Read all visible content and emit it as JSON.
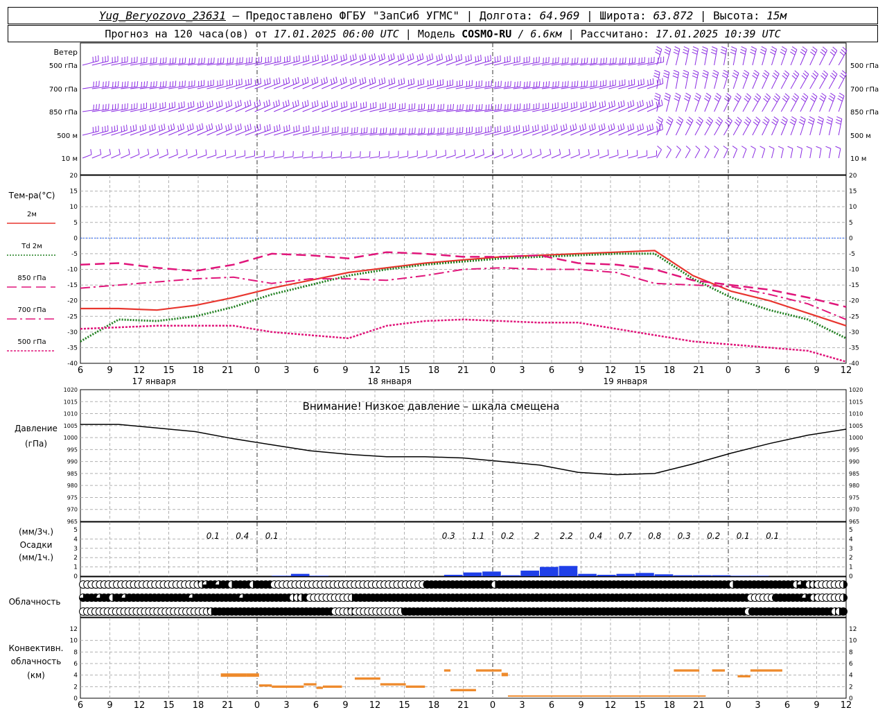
{
  "header": {
    "station": "Yug_Beryozovo_23631",
    "provided_by": "– Предоставлено ФГБУ \"ЗапСиб УГМС\"",
    "lon_label": "Долгота:",
    "lon": "64.969",
    "lat_label": "Широта:",
    "lat": "63.872",
    "alt_label": "Высота:",
    "alt": "15м",
    "forecast_label": "Прогноз на 120 часа(ов) от",
    "forecast_from": "17.01.2025 06:00 UTC",
    "model_label": "Модель",
    "model": "COSMO-RU",
    "model_res": "/ 6.6км",
    "calc_label": "Рассчитано:",
    "calc_time": "17.01.2025 10:39 UTC"
  },
  "colors": {
    "wind": "#8a2be2",
    "t2m": "#e8352e",
    "td2m": "#1e7f1e",
    "t850": "#e0157a",
    "t700": "#e0157a",
    "t500": "#e0157a",
    "zero_line": "#2060ff",
    "pressure": "#000000",
    "precip": "#1f3fe8",
    "convective": "#ee8a2c",
    "grid": "#b0b0b0"
  },
  "time_axis": {
    "hours": [
      "6",
      "9",
      "12",
      "15",
      "18",
      "21",
      "0",
      "3",
      "6",
      "9",
      "12",
      "15",
      "18",
      "21",
      "0",
      "3",
      "6",
      "9",
      "12",
      "15",
      "18",
      "21",
      "0",
      "3",
      "6",
      "9",
      "12"
    ],
    "dates": [
      {
        "label": "17 января",
        "at_index": 2.5
      },
      {
        "label": "18 января",
        "at_index": 10.5
      },
      {
        "label": "19 января",
        "at_index": 18.5
      }
    ]
  },
  "wind_panel": {
    "title": "Ветер",
    "levels": [
      "500 гПа",
      "700 гПа",
      "850 гПа",
      "500 м",
      "10  м"
    ]
  },
  "temp_panel": {
    "title": "Тем-ра(°C)",
    "legend": [
      {
        "label": "2м",
        "style": "solid"
      },
      {
        "label_it": "Td",
        "label": "2м",
        "style": "dotted"
      },
      {
        "label": "850 гПа",
        "style": "dash"
      },
      {
        "label": "700 гПа",
        "style": "dashdot"
      },
      {
        "label": "500 гПа",
        "style": "dot"
      }
    ],
    "ticks": [
      "20",
      "15",
      "10",
      "5",
      "0",
      "-5",
      "-10",
      "-15",
      "-20",
      "-25",
      "-30",
      "-35",
      "-40"
    ]
  },
  "pressure_panel": {
    "label1": "Давление",
    "label2": "(гПа)",
    "warning": "Внимание! Низкое давление – шкала смещена",
    "ticks": [
      "1020",
      "1015",
      "1010",
      "1005",
      "1000",
      "995",
      "990",
      "985",
      "980",
      "975",
      "970",
      "965"
    ]
  },
  "precip_panel": {
    "label1": "(мм/3ч.)",
    "label2": "Осадки",
    "label3": "(мм/1ч.)",
    "ticks": [
      "5",
      "4",
      "3",
      "2",
      "1",
      "0"
    ],
    "totals": [
      {
        "value": "0.1",
        "at_index": 4.5
      },
      {
        "value": "0.4",
        "at_index": 5.5
      },
      {
        "value": "0.1",
        "at_index": 6.5
      },
      {
        "value": "0.3",
        "at_index": 12.5
      },
      {
        "value": "1.1",
        "at_index": 13.5
      },
      {
        "value": "0.2",
        "at_index": 14.5
      },
      {
        "value": "2",
        "at_index": 15.5
      },
      {
        "value": "2.2",
        "at_index": 16.5
      },
      {
        "value": "0.4",
        "at_index": 17.5
      },
      {
        "value": "0.7",
        "at_index": 18.5
      },
      {
        "value": "0.8",
        "at_index": 19.5
      },
      {
        "value": "0.3",
        "at_index": 20.5
      },
      {
        "value": "0.2",
        "at_index": 21.5
      },
      {
        "value": "0.1",
        "at_index": 22.5
      },
      {
        "value": "0.1",
        "at_index": 23.5
      }
    ]
  },
  "cloud_panel": {
    "label": "Облачность"
  },
  "conv_panel": {
    "label1": "Конвективн.",
    "label2": "облачность",
    "label3": "(км)",
    "ticks": [
      "12",
      "10",
      "8",
      "6",
      "4",
      "2",
      "0"
    ]
  },
  "chart_data": [
    {
      "type": "line",
      "title": "Тем-ра(°C)",
      "x": [
        0,
        6,
        12,
        18,
        24,
        30,
        36,
        42,
        48,
        54,
        60,
        66,
        72,
        78,
        84,
        90,
        96,
        102,
        108,
        114,
        120
      ],
      "ylim": [
        -40,
        20
      ],
      "series": [
        {
          "name": "2м",
          "values": [
            -22.5,
            -22.5,
            -23,
            -21.5,
            -19,
            -16,
            -13.5,
            -11,
            -9.5,
            -8,
            -7,
            -6,
            -5.5,
            -5,
            -4.5,
            -4,
            -12,
            -17,
            -20,
            -24,
            -28
          ]
        },
        {
          "name": "Td 2м",
          "values": [
            -33,
            -26,
            -26.5,
            -25,
            -22,
            -18,
            -15,
            -12,
            -10,
            -8.5,
            -7.5,
            -6.5,
            -6,
            -5.5,
            -5,
            -5,
            -13,
            -19,
            -23,
            -26,
            -32
          ]
        },
        {
          "name": "850 гПа",
          "values": [
            -8.5,
            -8,
            -9.5,
            -10.5,
            -8.5,
            -5,
            -5.5,
            -6.5,
            -4.5,
            -5,
            -6,
            -6,
            -5.5,
            -8,
            -8.5,
            -10,
            -13.5,
            -15,
            -16.5,
            -19,
            -22
          ]
        },
        {
          "name": "700 гПа",
          "values": [
            -16,
            -15,
            -14,
            -13,
            -12.5,
            -14.5,
            -13,
            -13,
            -13.5,
            -12,
            -10,
            -9.5,
            -10,
            -10,
            -11,
            -14.5,
            -15,
            -15.5,
            -18,
            -21,
            -26
          ]
        },
        {
          "name": "500 гПа",
          "values": [
            -29,
            -28.5,
            -28,
            -28,
            -28,
            -30,
            -31,
            -32,
            -28,
            -26.5,
            -26,
            -26.5,
            -27,
            -27,
            -29,
            -31,
            -33,
            -34,
            -35,
            -36,
            -39.5
          ]
        }
      ]
    },
    {
      "type": "line",
      "title": "Давление (гПа)",
      "x": [
        0,
        6,
        12,
        18,
        24,
        30,
        36,
        42,
        48,
        54,
        60,
        66,
        72,
        78,
        84,
        90,
        96,
        102,
        108,
        114,
        120
      ],
      "ylim": [
        965,
        1020
      ],
      "series": [
        {
          "name": "Давление",
          "values": [
            1005.5,
            1005.5,
            1004,
            1002.5,
            999.5,
            997,
            994.5,
            993,
            992,
            992,
            991.5,
            990,
            988.5,
            985.5,
            984.5,
            985,
            989,
            993.5,
            997.5,
            1001,
            1003.5
          ]
        }
      ]
    },
    {
      "type": "bar",
      "title": "Осадки (мм/1ч.)",
      "x": [
        30,
        33,
        36,
        39,
        42,
        45,
        48,
        51,
        54,
        57,
        60,
        63,
        66,
        69,
        72,
        75,
        78,
        81,
        84,
        87,
        90,
        93,
        96,
        99,
        102,
        105,
        108,
        111
      ],
      "ylim": [
        0,
        5
      ],
      "values": [
        0.05,
        0.25,
        0.05,
        0,
        0,
        0,
        0,
        0,
        0,
        0.15,
        0.4,
        0.5,
        0.1,
        0.6,
        1.0,
        1.1,
        0.25,
        0.15,
        0.25,
        0.35,
        0.2,
        0.1,
        0.1,
        0.1,
        0.05,
        0.05,
        0,
        0
      ]
    },
    {
      "type": "bar",
      "title": "Конвективн. облачность (км)",
      "segments": [
        {
          "x0": 22,
          "x1": 26,
          "bottom": 3.7,
          "top": 4.3
        },
        {
          "x0": 26,
          "x1": 28,
          "bottom": 3.7,
          "top": 4.3
        },
        {
          "x0": 28,
          "x1": 30,
          "bottom": 2,
          "top": 2.4
        },
        {
          "x0": 30,
          "x1": 35,
          "bottom": 1.8,
          "top": 2.2
        },
        {
          "x0": 35,
          "x1": 37,
          "bottom": 2.2,
          "top": 2.6
        },
        {
          "x0": 37,
          "x1": 38,
          "bottom": 1.6,
          "top": 2
        },
        {
          "x0": 38,
          "x1": 41,
          "bottom": 1.8,
          "top": 2.2
        },
        {
          "x0": 43,
          "x1": 47,
          "bottom": 3.2,
          "top": 3.6
        },
        {
          "x0": 47,
          "x1": 51,
          "bottom": 2.2,
          "top": 2.6
        },
        {
          "x0": 51,
          "x1": 54,
          "bottom": 1.8,
          "top": 2.2
        },
        {
          "x0": 57,
          "x1": 58,
          "bottom": 4.6,
          "top": 5.0
        },
        {
          "x0": 58,
          "x1": 62,
          "bottom": 1.2,
          "top": 1.6
        },
        {
          "x0": 62,
          "x1": 66,
          "bottom": 4.6,
          "top": 5.0
        },
        {
          "x0": 66,
          "x1": 67,
          "bottom": 3.8,
          "top": 4.4
        },
        {
          "x0": 67,
          "x1": 98,
          "bottom": 0.3,
          "top": 0.5
        },
        {
          "x0": 93,
          "x1": 97,
          "bottom": 4.6,
          "top": 5.0
        },
        {
          "x0": 99,
          "x1": 101,
          "bottom": 4.6,
          "top": 5.0
        },
        {
          "x0": 103,
          "x1": 105,
          "bottom": 3.6,
          "top": 4.0
        },
        {
          "x0": 105,
          "x1": 110,
          "bottom": 4.6,
          "top": 5.0
        }
      ]
    },
    {
      "type": "table",
      "title": "Облачность",
      "rows": [
        {
          "name": "upper",
          "values": [
            0,
            0,
            0,
            0,
            0,
            0,
            0,
            0,
            0,
            0,
            0,
            0,
            0,
            0,
            0,
            0,
            0,
            0,
            0,
            0,
            0,
            0,
            0,
            0,
            0,
            0,
            0,
            0.25,
            0.5,
            0.75,
            1,
            1,
            0.75,
            1,
            1,
            0.5,
            1,
            1,
            1,
            1,
            0.5,
            1,
            1,
            1,
            1,
            0,
            0,
            0,
            0,
            0,
            0,
            0,
            0,
            0,
            0,
            0,
            0,
            0,
            0,
            0,
            0,
            0,
            0,
            0,
            0,
            0,
            0,
            0,
            0,
            0,
            0,
            0,
            0,
            0,
            0,
            0,
            0,
            0,
            0,
            0,
            0,
            1,
            1,
            1,
            1,
            1,
            1,
            1,
            1,
            1,
            1,
            1,
            1,
            1,
            1,
            1,
            1,
            0.5,
            1,
            1,
            1,
            1,
            1,
            1,
            1,
            1,
            1,
            1,
            1,
            1,
            1,
            1,
            1,
            1,
            1,
            1,
            1,
            1,
            1,
            1,
            1,
            1,
            1,
            1,
            1,
            1,
            1,
            1,
            1,
            1,
            1,
            1,
            1,
            1,
            1,
            1,
            1,
            1,
            1,
            1,
            1,
            1,
            1,
            1,
            1,
            1,
            1,
            1,
            1,
            1,
            1,
            1,
            1,
            0.5,
            1,
            1,
            1,
            1,
            1,
            1,
            1,
            1,
            1,
            1,
            1,
            1,
            1,
            1,
            0.5,
            0.75,
            1,
            0.5,
            0.5,
            0,
            0,
            0,
            0,
            0,
            0,
            0.5
          ]
        },
        {
          "name": "middle",
          "values": [
            0.75,
            1,
            1,
            1,
            0.75,
            1,
            1,
            0.5,
            1,
            1,
            0.75,
            1,
            1,
            1,
            1,
            1,
            1,
            1,
            1,
            1,
            1,
            1,
            1,
            1,
            1,
            1,
            0.75,
            1,
            1,
            1,
            1,
            1,
            1,
            1,
            1,
            1,
            1,
            1,
            0.75,
            1,
            1,
            1,
            1,
            1,
            1,
            1,
            1,
            1,
            1,
            1,
            0.5,
            0.5,
            0.5,
            1,
            0,
            0,
            0,
            0,
            0,
            0,
            0,
            0,
            0,
            0,
            0.5,
            1,
            1,
            1,
            1,
            1,
            1,
            1,
            1,
            1,
            1,
            1,
            1,
            1,
            1,
            1,
            1,
            1,
            1,
            1,
            1,
            1,
            1,
            1,
            1,
            1,
            1,
            1,
            1,
            1,
            1,
            1,
            1,
            1,
            1,
            1,
            1,
            1,
            1,
            1,
            1,
            1,
            1,
            1,
            1,
            1,
            1,
            1,
            1,
            1,
            1,
            1,
            1,
            1,
            1,
            1,
            1,
            1,
            1,
            1,
            1,
            1,
            1,
            1,
            1,
            1,
            1,
            1,
            1,
            1,
            1,
            1,
            1,
            1,
            1,
            1,
            1,
            1,
            1,
            1,
            1,
            1,
            1,
            1,
            1,
            1,
            1,
            1,
            1,
            1,
            1,
            1,
            1,
            1,
            1,
            0,
            0,
            0,
            0,
            0,
            0,
            1,
            1,
            1,
            1,
            1,
            1,
            1,
            0.75,
            1,
            0.5,
            0,
            0,
            0,
            0,
            0,
            0,
            0.5
          ]
        },
        {
          "name": "lower",
          "values": [
            0,
            0,
            0,
            0,
            0,
            0,
            0,
            0,
            0,
            0,
            0,
            0,
            0,
            0,
            0,
            0,
            0,
            0,
            0,
            0,
            0,
            0,
            0,
            0,
            0,
            0,
            0,
            0,
            0,
            0,
            0.25,
            0.5,
            1,
            1,
            1,
            1,
            1,
            1,
            1,
            1,
            1,
            1,
            1,
            1,
            1,
            1,
            1,
            1,
            1,
            1,
            1,
            1,
            1,
            1,
            1,
            1,
            1,
            1,
            1,
            1,
            1,
            0,
            0,
            0,
            0.25,
            0.5,
            0,
            0,
            0,
            0,
            0,
            0,
            0,
            0,
            0,
            0,
            0,
            0.25,
            1,
            1,
            1,
            1,
            1,
            1,
            1,
            1,
            1,
            1,
            1,
            1,
            1,
            1,
            1,
            1,
            1,
            1,
            1,
            1,
            1,
            1,
            1,
            1,
            1,
            1,
            1,
            1,
            1,
            1,
            1,
            1,
            1,
            1,
            1,
            1,
            1,
            1,
            1,
            1,
            1,
            1,
            1,
            1,
            1,
            1,
            1,
            1,
            1,
            1,
            1,
            1,
            1,
            1,
            1,
            1,
            1,
            1,
            1,
            1,
            1,
            1,
            1,
            1,
            1,
            1,
            1,
            1,
            1,
            1,
            1,
            1,
            1,
            1,
            1,
            1,
            1,
            1,
            1,
            1,
            1,
            1,
            1,
            0,
            1,
            1,
            1,
            1,
            1,
            1,
            1,
            1,
            1,
            1,
            1,
            1,
            1,
            1,
            1,
            1,
            1,
            1,
            1,
            1,
            0.5,
            0.5,
            1
          ]
        }
      ]
    }
  ]
}
